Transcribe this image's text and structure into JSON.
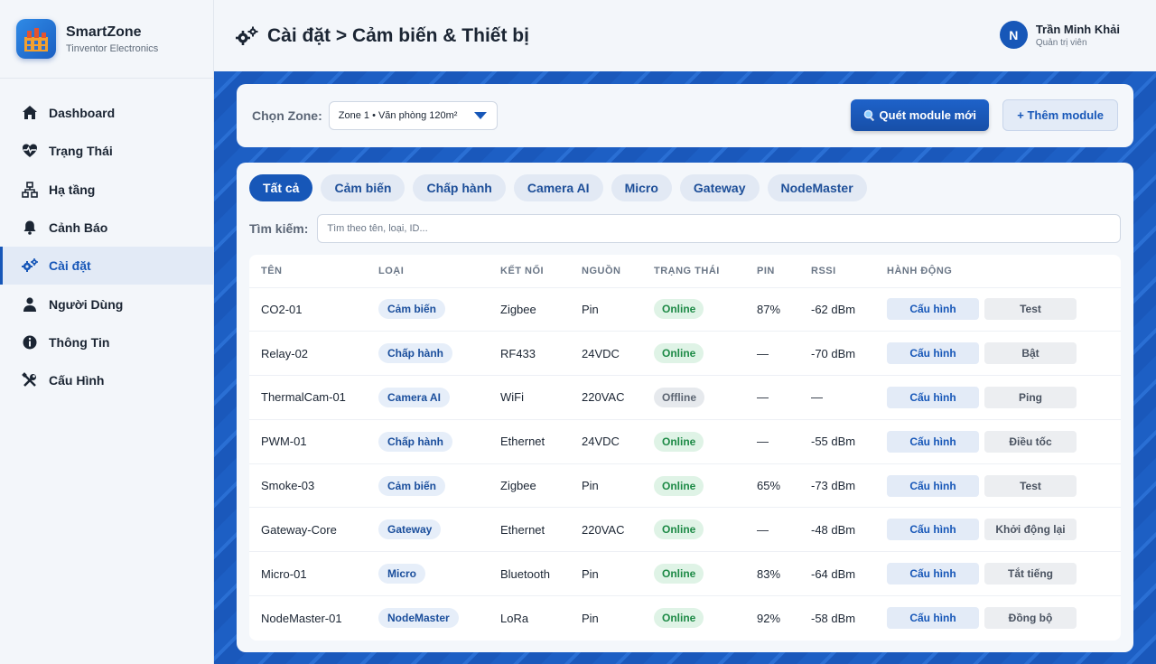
{
  "brand": {
    "name": "SmartZone",
    "subtitle": "Tinventor Electronics"
  },
  "sidebar": {
    "items": [
      {
        "label": "Dashboard",
        "icon": "home-icon"
      },
      {
        "label": "Trạng Thái",
        "icon": "heartbeat-icon"
      },
      {
        "label": "Hạ tầng",
        "icon": "network-icon"
      },
      {
        "label": "Cảnh Báo",
        "icon": "bell-icon"
      },
      {
        "label": "Cài đặt",
        "icon": "gears-icon",
        "active": true
      },
      {
        "label": "Người Dùng",
        "icon": "user-icon"
      },
      {
        "label": "Thông Tin",
        "icon": "info-icon"
      },
      {
        "label": "Cấu Hình",
        "icon": "tools-icon"
      }
    ]
  },
  "header": {
    "title": "Cài đặt > Cảm biến & Thiết bị"
  },
  "user": {
    "initial": "N",
    "name": "Trần Minh Khải",
    "role": "Quản trị viên"
  },
  "zone": {
    "label": "Chọn Zone:",
    "selected": "Zone 1 • Văn phòng 120m²",
    "scan_button": "Quét module mới",
    "add_button": "+ Thêm module"
  },
  "filters": [
    "Tất cả",
    "Cảm biến",
    "Chấp hành",
    "Camera AI",
    "Micro",
    "Gateway",
    "NodeMaster"
  ],
  "search": {
    "label": "Tìm kiếm:",
    "placeholder": "Tìm theo tên, loại, ID..."
  },
  "table": {
    "headers": [
      "TÊN",
      "LOẠI",
      "KẾT NỐI",
      "NGUỒN",
      "TRẠNG THÁI",
      "PIN",
      "RSSI",
      "HÀNH ĐỘNG"
    ],
    "config_label": "Cấu hình",
    "rows": [
      {
        "name": "CO2-01",
        "type": "Cảm biến",
        "conn": "Zigbee",
        "power": "Pin",
        "status": "Online",
        "battery": "87%",
        "rssi": "-62 dBm",
        "action": "Test"
      },
      {
        "name": "Relay-02",
        "type": "Chấp hành",
        "conn": "RF433",
        "power": "24VDC",
        "status": "Online",
        "battery": "—",
        "rssi": "-70 dBm",
        "action": "Bật"
      },
      {
        "name": "ThermalCam-01",
        "type": "Camera AI",
        "conn": "WiFi",
        "power": "220VAC",
        "status": "Offline",
        "battery": "—",
        "rssi": "—",
        "action": "Ping"
      },
      {
        "name": "PWM-01",
        "type": "Chấp hành",
        "conn": "Ethernet",
        "power": "24VDC",
        "status": "Online",
        "battery": "—",
        "rssi": "-55 dBm",
        "action": "Điều tốc"
      },
      {
        "name": "Smoke-03",
        "type": "Cảm biến",
        "conn": "Zigbee",
        "power": "Pin",
        "status": "Online",
        "battery": "65%",
        "rssi": "-73 dBm",
        "action": "Test"
      },
      {
        "name": "Gateway-Core",
        "type": "Gateway",
        "conn": "Ethernet",
        "power": "220VAC",
        "status": "Online",
        "battery": "—",
        "rssi": "-48 dBm",
        "action": "Khởi động lại"
      },
      {
        "name": "Micro-01",
        "type": "Micro",
        "conn": "Bluetooth",
        "power": "Pin",
        "status": "Online",
        "battery": "83%",
        "rssi": "-64 dBm",
        "action": "Tắt tiếng"
      },
      {
        "name": "NodeMaster-01",
        "type": "NodeMaster",
        "conn": "LoRa",
        "power": "Pin",
        "status": "Online",
        "battery": "92%",
        "rssi": "-58 dBm",
        "action": "Đồng bộ"
      }
    ]
  },
  "colors": {
    "accent": "#1757b8",
    "online": "#1d8a46",
    "offline": "#5c6572",
    "background": "#1d5fc4"
  }
}
